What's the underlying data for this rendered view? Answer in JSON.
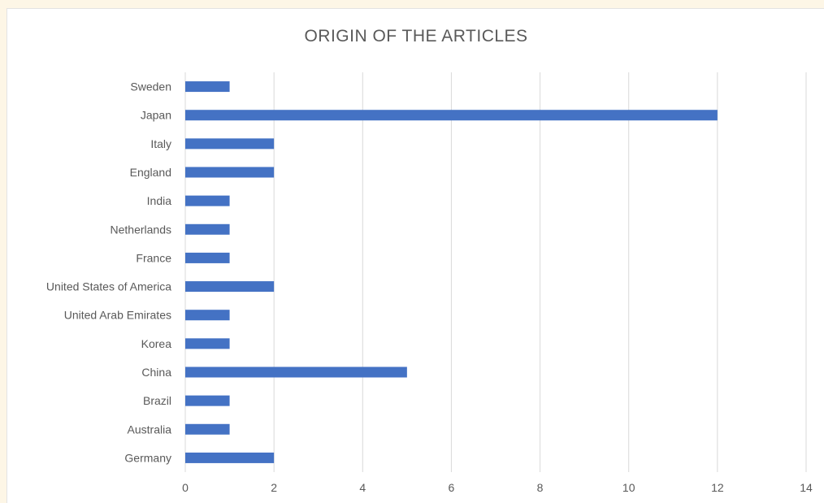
{
  "chart_data": {
    "type": "bar",
    "orientation": "horizontal",
    "title": "ORIGIN OF THE ARTICLES",
    "categories": [
      "Sweden",
      "Japan",
      "Italy",
      "England",
      "India",
      "Netherlands",
      "France",
      "United States of America",
      "United Arab Emirates",
      "Korea",
      "China",
      "Brazil",
      "Australia",
      "Germany"
    ],
    "values": [
      1,
      12,
      2,
      2,
      1,
      1,
      1,
      2,
      1,
      1,
      5,
      1,
      1,
      2
    ],
    "xlim": [
      0,
      14
    ],
    "xticks": [
      0,
      2,
      4,
      6,
      8,
      10,
      12,
      14
    ],
    "grid": true,
    "colors": {
      "bar": "#4472c4",
      "grid": "#d9d9d9",
      "text": "#595959"
    }
  }
}
